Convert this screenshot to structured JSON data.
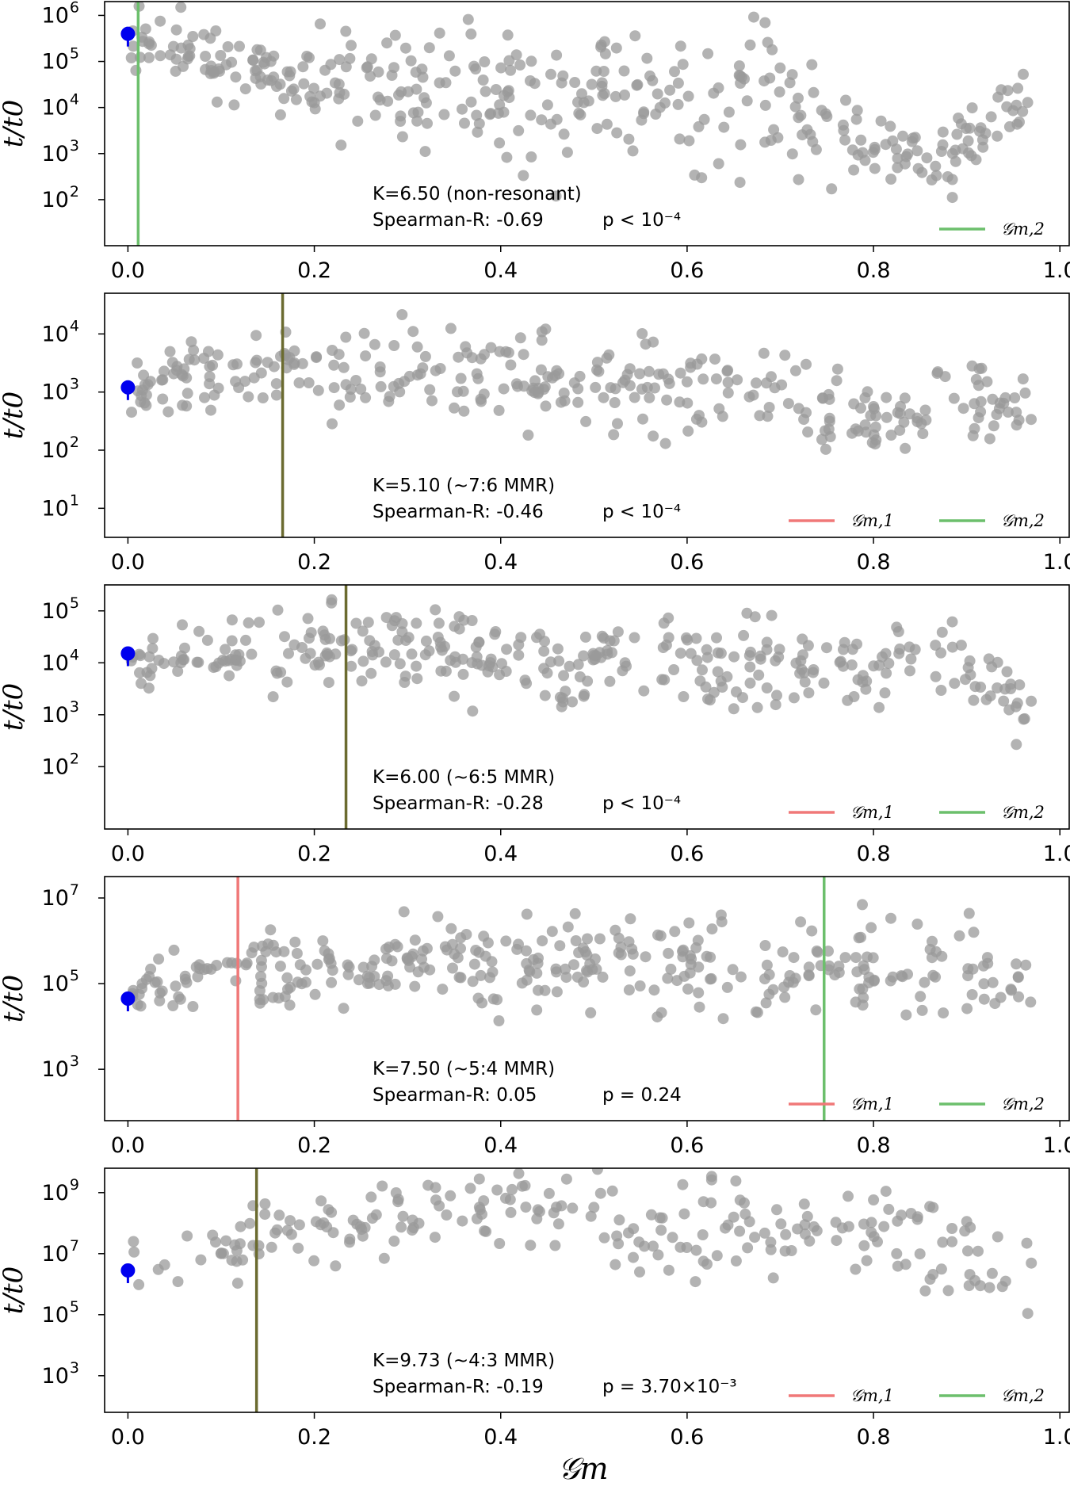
{
  "colors": {
    "scatter": "#9a9a9a",
    "marker": "#0000ee",
    "gm1": "#f07878",
    "gm2": "#6cbf6c",
    "overlap": "#6b6b30",
    "axis": "#000000"
  },
  "figure": {
    "xlabel": "𝒢m"
  },
  "chart_data": [
    {
      "type": "scatter",
      "ylabel": "t/t0",
      "xlim": [
        -0.025,
        1.01
      ],
      "ylog": [
        1.0,
        6.3
      ],
      "xticks": [
        "0.0",
        "0.2",
        "0.4",
        "0.6",
        "0.8",
        "1.0"
      ],
      "yticks": [
        {
          "exp": 2,
          "label": "2"
        },
        {
          "exp": 3,
          "label": "3"
        },
        {
          "exp": 4,
          "label": "4"
        },
        {
          "exp": 5,
          "label": "5"
        },
        {
          "exp": 6,
          "label": "6"
        }
      ],
      "annotation": {
        "line1": "K=6.50 (non-resonant)",
        "line2": "Spearman-R: -0.69",
        "pvalue": "p < 10⁻⁴"
      },
      "marker": {
        "x": 0.0,
        "log10_t": 5.6
      },
      "vlines": [
        {
          "name": "Gm,2",
          "x": 0.011,
          "color": "gm2"
        }
      ],
      "legend": [
        {
          "label": "𝒢m,2",
          "color": "gm2",
          "slot": 2
        }
      ],
      "scatter_trend": [
        [
          0.0,
          5.6,
          0.3
        ],
        [
          0.1,
          5.0,
          0.4
        ],
        [
          0.4,
          4.2,
          0.75
        ],
        [
          0.7,
          4.1,
          0.7
        ],
        [
          0.8,
          3.0,
          0.45
        ],
        [
          0.88,
          3.0,
          0.4
        ],
        [
          0.97,
          4.3,
          0.35
        ]
      ],
      "scatter_count": 370,
      "seed": 11
    },
    {
      "type": "scatter",
      "ylabel": "t/t0",
      "xlim": [
        -0.025,
        1.01
      ],
      "ylog": [
        0.5,
        4.7
      ],
      "xticks": [
        "0.0",
        "0.2",
        "0.4",
        "0.6",
        "0.8",
        "1.0"
      ],
      "yticks": [
        {
          "exp": 1,
          "label": "1"
        },
        {
          "exp": 2,
          "label": "2"
        },
        {
          "exp": 3,
          "label": "3"
        },
        {
          "exp": 4,
          "label": "4"
        }
      ],
      "annotation": {
        "line1": "K=5.10 (~7:6 MMR)",
        "line2": "Spearman-R: -0.46",
        "pvalue": "p < 10⁻⁴"
      },
      "marker": {
        "x": 0.0,
        "log10_t": 3.08
      },
      "vlines": [
        {
          "name": "Gm,1",
          "x": 0.166,
          "color": "overlap"
        }
      ],
      "legend": [
        {
          "label": "𝒢m,1",
          "color": "gm1",
          "slot": 1
        },
        {
          "label": "𝒢m,2",
          "color": "gm2",
          "slot": 2
        }
      ],
      "scatter_trend": [
        [
          0.0,
          3.1,
          0.25
        ],
        [
          0.2,
          3.4,
          0.35
        ],
        [
          0.5,
          3.1,
          0.4
        ],
        [
          0.7,
          3.1,
          0.4
        ],
        [
          0.8,
          2.5,
          0.35
        ],
        [
          0.9,
          2.9,
          0.3
        ],
        [
          0.97,
          2.6,
          0.35
        ]
      ],
      "scatter_count": 330,
      "seed": 23
    },
    {
      "type": "scatter",
      "ylabel": "t/t0",
      "xlim": [
        -0.025,
        1.01
      ],
      "ylog": [
        0.8,
        5.5
      ],
      "xticks": [
        "0.0",
        "0.2",
        "0.4",
        "0.6",
        "0.8",
        "1.0"
      ],
      "yticks": [
        {
          "exp": 2,
          "label": "2"
        },
        {
          "exp": 3,
          "label": "3"
        },
        {
          "exp": 4,
          "label": "4"
        },
        {
          "exp": 5,
          "label": "5"
        }
      ],
      "annotation": {
        "line1": "K=6.00 (~6:5 MMR)",
        "line2": "Spearman-R: -0.28",
        "pvalue": "p < 10⁻⁴"
      },
      "marker": {
        "x": 0.0,
        "log10_t": 4.18
      },
      "vlines": [
        {
          "name": "Gm,1",
          "x": 0.234,
          "color": "overlap"
        }
      ],
      "legend": [
        {
          "label": "𝒢m,1",
          "color": "gm1",
          "slot": 1
        },
        {
          "label": "𝒢m,2",
          "color": "gm2",
          "slot": 2
        }
      ],
      "scatter_trend": [
        [
          0.0,
          4.0,
          0.25
        ],
        [
          0.25,
          4.4,
          0.4
        ],
        [
          0.4,
          3.9,
          0.45
        ],
        [
          0.7,
          3.9,
          0.45
        ],
        [
          0.88,
          4.1,
          0.35
        ],
        [
          0.97,
          3.0,
          0.4
        ]
      ],
      "scatter_count": 340,
      "seed": 37
    },
    {
      "type": "scatter",
      "ylabel": "t/t0",
      "xlim": [
        -0.025,
        1.01
      ],
      "ylog": [
        1.8,
        7.5
      ],
      "xticks": [
        "0.0",
        "0.2",
        "0.4",
        "0.6",
        "0.8",
        "1.0"
      ],
      "yticks": [
        {
          "exp": 3,
          "label": "3"
        },
        {
          "exp": 5,
          "label": "5"
        },
        {
          "exp": 7,
          "label": "7"
        }
      ],
      "annotation": {
        "line1": "K=7.50 (~5:4 MMR)",
        "line2": "Spearman-R: 0.05",
        "pvalue": "p = 0.24"
      },
      "marker": {
        "x": 0.0,
        "log10_t": 4.65
      },
      "vlines": [
        {
          "name": "Gm,1",
          "x": 0.118,
          "color": "gm1"
        },
        {
          "name": "Gm,2",
          "x": 0.747,
          "color": "gm2"
        }
      ],
      "legend": [
        {
          "label": "𝒢m,1",
          "color": "gm1",
          "slot": 1
        },
        {
          "label": "𝒢m,2",
          "color": "gm2",
          "slot": 2
        }
      ],
      "scatter_trend": [
        [
          0.0,
          4.7,
          0.25
        ],
        [
          0.1,
          5.3,
          0.35
        ],
        [
          0.4,
          5.5,
          0.55
        ],
        [
          0.7,
          5.4,
          0.55
        ],
        [
          0.9,
          5.2,
          0.6
        ],
        [
          0.97,
          5.0,
          0.35
        ]
      ],
      "scatter_count": 340,
      "seed": 51
    },
    {
      "type": "scatter",
      "ylabel": "t/t0",
      "xlim": [
        -0.025,
        1.01
      ],
      "ylog": [
        1.8,
        9.8
      ],
      "xticks": [
        "0.0",
        "0.2",
        "0.4",
        "0.6",
        "0.8",
        "1.0"
      ],
      "yticks": [
        {
          "exp": 3,
          "label": "3"
        },
        {
          "exp": 5,
          "label": "5"
        },
        {
          "exp": 7,
          "label": "7"
        },
        {
          "exp": 9,
          "label": "9"
        }
      ],
      "annotation": {
        "line1": "K=9.73 (~4:3 MMR)",
        "line2": "Spearman-R: -0.19",
        "pvalue": "p = 3.70×10⁻³"
      },
      "marker": {
        "x": 0.0,
        "log10_t": 6.45
      },
      "vlines": [
        {
          "name": "Gm,1",
          "x": 0.138,
          "color": "overlap"
        }
      ],
      "legend": [
        {
          "label": "𝒢m,1",
          "color": "gm1",
          "slot": 1
        },
        {
          "label": "𝒢m,2",
          "color": "gm2",
          "slot": 2
        }
      ],
      "scatter_trend": [
        [
          0.0,
          6.5,
          0.4
        ],
        [
          0.15,
          7.6,
          0.55
        ],
        [
          0.35,
          8.6,
          0.55
        ],
        [
          0.6,
          7.6,
          0.8
        ],
        [
          0.8,
          7.9,
          0.7
        ],
        [
          0.97,
          6.3,
          0.8
        ]
      ],
      "scatter_count": 230,
      "seed": 73
    }
  ]
}
